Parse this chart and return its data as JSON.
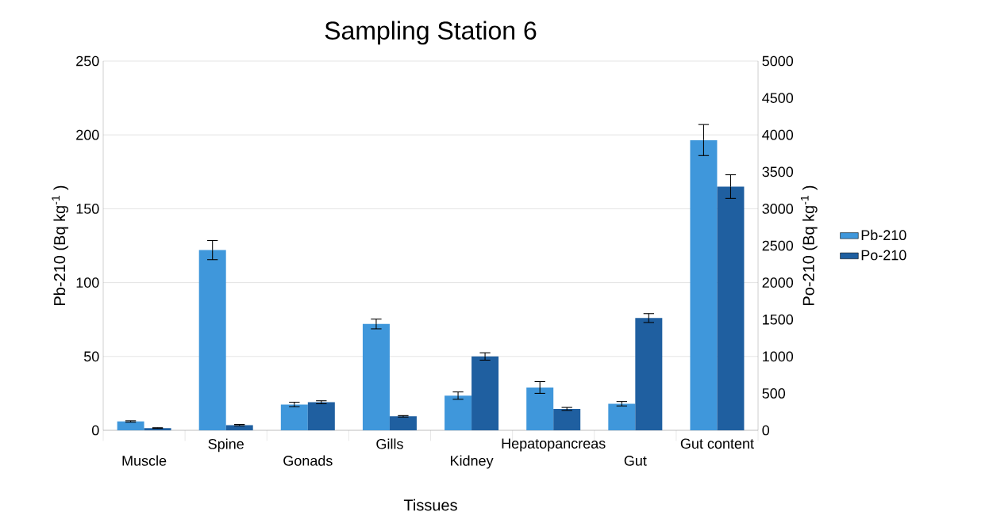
{
  "chart_data": {
    "type": "bar",
    "title": "Sampling Station 6",
    "xlabel": "Tissues",
    "ylabel": "Pb-210 (Bq kg$^{-1}$ )",
    "y2label": "Po-210 (Bq kg$^{-1}$ )",
    "categories": [
      "Muscle",
      "Spine",
      "Gonads",
      "Gills",
      "Kidney",
      "Hepatopancreas",
      "Gut",
      "Gut content"
    ],
    "series": [
      {
        "name": "Pb-210",
        "color": "#3f97db",
        "values": [
          6,
          122,
          17.5,
          72,
          23.5,
          29,
          18,
          196.5
        ],
        "errors": [
          0.5,
          6.5,
          1.5,
          3.3,
          2.5,
          4,
          1.5,
          10.5
        ]
      },
      {
        "name": "Po-210",
        "color": "#1f5fa0",
        "axis": "y2",
        "values": [
          30,
          70,
          380,
          190,
          1000,
          290,
          1520,
          3300
        ],
        "errors": [
          5,
          10,
          20,
          10,
          50,
          20,
          60,
          160
        ]
      }
    ],
    "ylim": [
      0,
      250
    ],
    "yticks": [
      0,
      50,
      100,
      150,
      200,
      250
    ],
    "y2lim": [
      0,
      5000
    ],
    "y2ticks": [
      0,
      500,
      1000,
      1500,
      2000,
      2500,
      3000,
      3500,
      4000,
      4500,
      5000
    ],
    "grid": "y",
    "legend": "right"
  }
}
